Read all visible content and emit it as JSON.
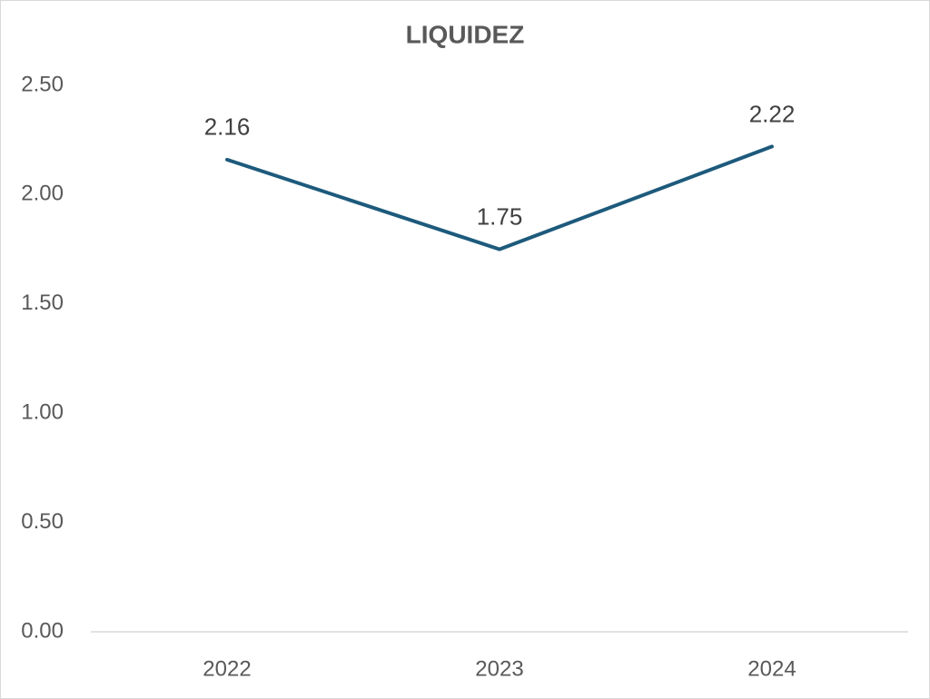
{
  "chart_data": {
    "type": "line",
    "title": "LIQUIDEZ",
    "categories": [
      "2022",
      "2023",
      "2024"
    ],
    "values": [
      2.16,
      1.75,
      2.22
    ],
    "color": "#1d5a7c",
    "ylim": [
      0,
      2.5
    ],
    "yticks": [
      {
        "value": 0,
        "label": "0.00"
      },
      {
        "value": 0.5,
        "label": "0.50"
      },
      {
        "value": 1,
        "label": "1.00"
      },
      {
        "value": 1.5,
        "label": "1.50"
      },
      {
        "value": 2,
        "label": "2.00"
      },
      {
        "value": 2.5,
        "label": "2.50"
      }
    ],
    "grid": false
  }
}
